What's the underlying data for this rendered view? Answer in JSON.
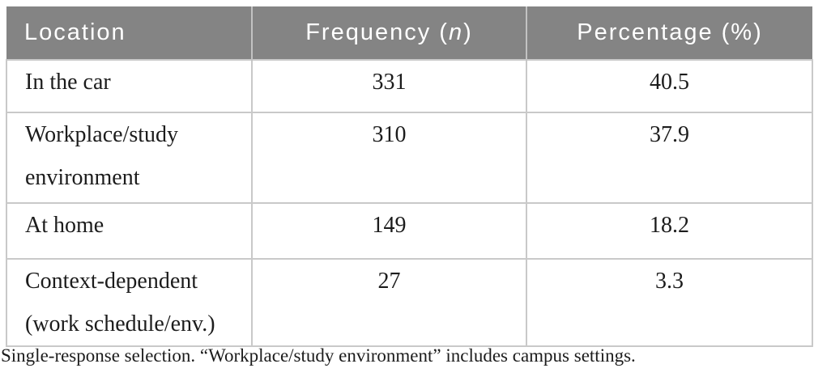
{
  "table": {
    "columns": [
      {
        "label": "Location"
      },
      {
        "prefix": "Frequency (",
        "italic_var": "n",
        "suffix": ")"
      },
      {
        "label": "Percentage (%)"
      }
    ],
    "rows": [
      {
        "location": "In the car",
        "frequency": "331",
        "percentage": "40.5"
      },
      {
        "location": "Workplace/study environment",
        "frequency": "310",
        "percentage": "37.9"
      },
      {
        "location": "At home",
        "frequency": "149",
        "percentage": "18.2"
      },
      {
        "location": "Context-dependent (work schedule/env.)",
        "frequency": "27",
        "percentage": "3.3"
      }
    ],
    "footnote": "Single-response selection. “Workplace/study environment” includes campus settings."
  },
  "colors": {
    "header_background": "#848484",
    "header_text": "#ffffff",
    "body_text": "#1c1c1c",
    "border": "#c9c9c9"
  },
  "chart_data": {
    "type": "table",
    "title": "",
    "columns": [
      "Location",
      "Frequency (n)",
      "Percentage (%)"
    ],
    "rows": [
      [
        "In the car",
        331,
        40.5
      ],
      [
        "Workplace/study environment",
        310,
        37.9
      ],
      [
        "At home",
        149,
        18.2
      ],
      [
        "Context-dependent (work schedule/env.)",
        27,
        3.3
      ]
    ],
    "footnote": "Single-response selection. “Workplace/study environment” includes campus settings."
  }
}
